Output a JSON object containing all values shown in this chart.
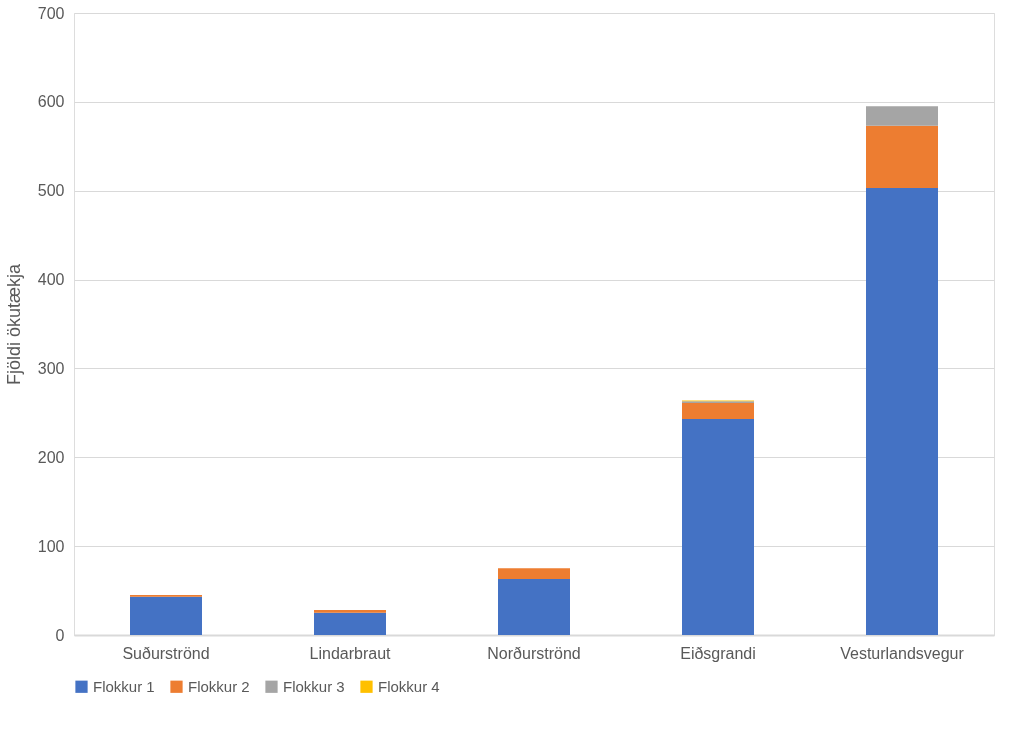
{
  "chart_data": {
    "type": "bar",
    "stacked": true,
    "ylabel": "Fjöldi ökutækja",
    "categories": [
      "Suðurströnd",
      "Lindarbraut",
      "Norðurströnd",
      "Eiðsgrandi",
      "Vesturlandsvegur"
    ],
    "series": [
      {
        "name": "Flokkur 1",
        "color": "#4472c4",
        "values": [
          43,
          25,
          63,
          243,
          503
        ]
      },
      {
        "name": "Flokkur 2",
        "color": "#ed7d31",
        "values": [
          2,
          3,
          12,
          18,
          70
        ]
      },
      {
        "name": "Flokkur 3",
        "color": "#a5a5a5",
        "values": [
          0,
          0,
          0,
          2,
          22
        ]
      },
      {
        "name": "Flokkur 4",
        "color": "#ffc000",
        "values": [
          0,
          0,
          0,
          1,
          0
        ]
      }
    ],
    "ylim": [
      0,
      700
    ],
    "yticks": [
      0,
      100,
      200,
      300,
      400,
      500,
      600,
      700
    ],
    "grid": "y",
    "legend": "bottom"
  }
}
